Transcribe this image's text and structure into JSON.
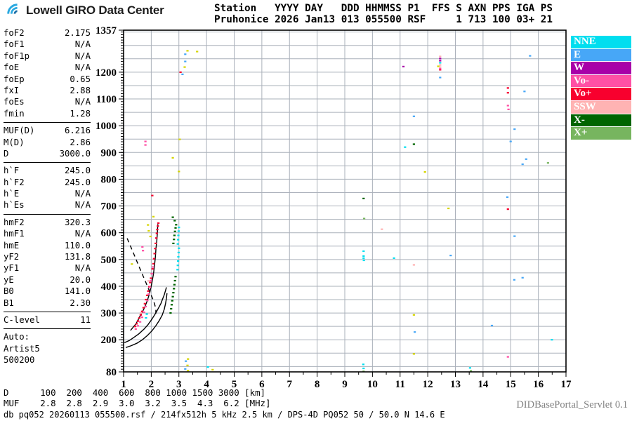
{
  "header": {
    "logo_text": "Lowell GIRO Data Center",
    "station_line1": "Station   YYYY DAY   DDD HHMMSS P1  FFS S AXN PPS IGA PS",
    "station_line2": "Pruhonice 2026 Jan13 013 055500 RSF     1 713 100 03+ 21"
  },
  "params": {
    "groups": [
      {
        "rows": [
          [
            "foF2",
            "2.175"
          ],
          [
            "foF1",
            "N/A"
          ],
          [
            "foF1p",
            "N/A"
          ],
          [
            "foE",
            "N/A"
          ],
          [
            "foEp",
            "0.65"
          ],
          [
            "fxI",
            "2.88"
          ],
          [
            "foEs",
            "N/A"
          ],
          [
            "fmin",
            "1.28"
          ]
        ]
      },
      {
        "rows": [
          [
            "MUF(D)",
            "6.216"
          ],
          [
            "M(D)",
            "2.86"
          ],
          [
            "D",
            "3000.0"
          ]
        ]
      },
      {
        "rows": [
          [
            "h`F",
            "245.0"
          ],
          [
            "h`F2",
            "245.0"
          ],
          [
            "h`E",
            "N/A"
          ],
          [
            "h`Es",
            "N/A"
          ]
        ]
      },
      {
        "rows": [
          [
            "hmF2",
            "320.3"
          ],
          [
            "hmF1",
            "N/A"
          ],
          [
            "hmE",
            "110.0"
          ],
          [
            "yF2",
            "131.8"
          ],
          [
            "yF1",
            "N/A"
          ],
          [
            "yE",
            "20.0"
          ],
          [
            "B0",
            "141.0"
          ],
          [
            "B1",
            "2.30"
          ]
        ]
      },
      {
        "rows": [
          [
            "C-level",
            "11"
          ]
        ]
      }
    ],
    "auto_title": "Auto:",
    "auto_lines": [
      "Artist5",
      "500200"
    ]
  },
  "legend": {
    "items": [
      {
        "label": "NNE",
        "color": "#00DEEF"
      },
      {
        "label": "E",
        "color": "#47A7F7"
      },
      {
        "label": "W",
        "color": "#A800A8"
      },
      {
        "label": "Vo-",
        "color": "#FF50A5"
      },
      {
        "label": "Vo+",
        "color": "#F8002E"
      },
      {
        "label": "SSW",
        "color": "#FFB3B3"
      },
      {
        "label": "X-",
        "color": "#006400"
      },
      {
        "label": "X+",
        "color": "#77B55F"
      }
    ]
  },
  "chart_data": {
    "type": "scatter",
    "title": "Pruhonice ionogram 2026 Jan13 013 055500",
    "xlabel": "[MHz]",
    "ylabel": "[km]",
    "xlim": [
      1,
      17
    ],
    "ylim": [
      80,
      1357
    ],
    "x_ticks": [
      1,
      2,
      3,
      4,
      5,
      6,
      7,
      8,
      9,
      10,
      11,
      12,
      13,
      14,
      15,
      16,
      17
    ],
    "y_ticks": [
      1357,
      1200,
      1100,
      1000,
      900,
      800,
      700,
      600,
      500,
      400,
      300,
      200,
      80
    ],
    "grid": true,
    "legend_position": "right",
    "series": [
      {
        "name": "Vo+",
        "color": "#F8002E",
        "points": [
          [
            1.42,
            250
          ],
          [
            1.47,
            260
          ],
          [
            1.52,
            270
          ],
          [
            1.57,
            281
          ],
          [
            1.62,
            293
          ],
          [
            1.67,
            306
          ],
          [
            1.72,
            320
          ],
          [
            1.77,
            335
          ],
          [
            1.81,
            350
          ],
          [
            1.85,
            366
          ],
          [
            1.89,
            382
          ],
          [
            1.93,
            398
          ],
          [
            1.96,
            414
          ],
          [
            1.99,
            430
          ],
          [
            2.02,
            447
          ],
          [
            2.05,
            465
          ],
          [
            2.08,
            484
          ],
          [
            2.1,
            503
          ],
          [
            2.12,
            522
          ],
          [
            2.14,
            541
          ],
          [
            2.16,
            560
          ],
          [
            2.18,
            580
          ],
          [
            2.2,
            598
          ],
          [
            2.22,
            612
          ],
          [
            2.24,
            625
          ],
          [
            2.26,
            636
          ],
          [
            2.04,
            739
          ],
          [
            3.06,
            1200
          ],
          [
            14.9,
            1141
          ],
          [
            14.9,
            1123
          ],
          [
            14.9,
            688
          ],
          [
            12.45,
            1209
          ]
        ]
      },
      {
        "name": "Vo-",
        "color": "#FF50A5",
        "points": [
          [
            1.44,
            240
          ],
          [
            1.52,
            252
          ],
          [
            1.6,
            267
          ],
          [
            1.67,
            284
          ],
          [
            1.74,
            303
          ],
          [
            1.8,
            324
          ],
          [
            1.86,
            347
          ],
          [
            1.91,
            371
          ],
          [
            1.95,
            396
          ],
          [
            1.99,
            421
          ],
          [
            2.03,
            447
          ],
          [
            2.06,
            472
          ],
          [
            1.68,
            547
          ],
          [
            1.7,
            533
          ],
          [
            1.79,
            941
          ],
          [
            1.79,
            928
          ],
          [
            14.9,
            1075
          ],
          [
            14.92,
            1061
          ],
          [
            14.9,
            136
          ],
          [
            12.45,
            1213
          ]
        ]
      },
      {
        "name": "SSW",
        "color": "#FFB3B3",
        "points": [
          [
            10.34,
            613
          ],
          [
            11.5,
            480
          ],
          [
            12.45,
            1259
          ],
          [
            12.45,
            1227
          ],
          [
            12.45,
            1219
          ],
          [
            1.63,
            300
          ],
          [
            1.9,
            420
          ]
        ]
      },
      {
        "name": "W",
        "color": "#A800A8",
        "points": [
          [
            11.12,
            1221
          ],
          [
            12.45,
            1251
          ],
          [
            12.45,
            1243
          ]
        ]
      },
      {
        "name": "E",
        "color": "#47A7F7",
        "points": [
          [
            3.23,
            1267
          ],
          [
            3.23,
            1240
          ],
          [
            3.13,
            1192
          ],
          [
            3.25,
            120
          ],
          [
            3.23,
            91
          ],
          [
            12.45,
            1180
          ],
          [
            15.7,
            1261
          ],
          [
            15.5,
            1128
          ],
          [
            11.5,
            1035
          ],
          [
            15.14,
            987
          ],
          [
            15.0,
            941
          ],
          [
            15.56,
            875
          ],
          [
            15.43,
            856
          ],
          [
            14.88,
            733
          ],
          [
            15.14,
            587
          ],
          [
            15.43,
            432
          ],
          [
            15.13,
            424
          ],
          [
            14.32,
            253
          ],
          [
            11.53,
            229
          ],
          [
            12.83,
            515
          ]
        ]
      },
      {
        "name": "NNE",
        "color": "#00DEEF",
        "points": [
          [
            2.95,
            462
          ],
          [
            2.96,
            478
          ],
          [
            2.97,
            494
          ],
          [
            2.98,
            510
          ],
          [
            2.99,
            526
          ],
          [
            3.0,
            542
          ],
          [
            2.96,
            558
          ],
          [
            2.97,
            574
          ],
          [
            2.98,
            590
          ],
          [
            2.99,
            606
          ],
          [
            3.0,
            620
          ],
          [
            1.84,
            296
          ],
          [
            1.81,
            282
          ],
          [
            9.68,
            531
          ],
          [
            9.68,
            513
          ],
          [
            9.68,
            505
          ],
          [
            9.69,
            497
          ],
          [
            10.78,
            505
          ],
          [
            11.18,
            920
          ],
          [
            16.49,
            200
          ],
          [
            9.67,
            108
          ],
          [
            9.68,
            93
          ],
          [
            13.53,
            95
          ],
          [
            4.05,
            98
          ],
          [
            12.45,
            1235
          ]
        ]
      },
      {
        "name": "X-",
        "color": "#006400",
        "points": [
          [
            2.7,
            300
          ],
          [
            2.72,
            316
          ],
          [
            2.74,
            331
          ],
          [
            2.76,
            346
          ],
          [
            2.78,
            361
          ],
          [
            2.8,
            376
          ],
          [
            2.82,
            391
          ],
          [
            2.84,
            406
          ],
          [
            2.86,
            421
          ],
          [
            2.88,
            436
          ],
          [
            2.8,
            560
          ],
          [
            2.82,
            575
          ],
          [
            2.84,
            590
          ],
          [
            2.86,
            605
          ],
          [
            2.88,
            618
          ],
          [
            2.9,
            630
          ],
          [
            2.85,
            645
          ],
          [
            2.78,
            658
          ],
          [
            11.5,
            931
          ],
          [
            9.68,
            728
          ]
        ]
      },
      {
        "name": "X+",
        "color": "#77B55F",
        "points": [
          [
            9.7,
            653
          ],
          [
            16.35,
            861
          ],
          [
            9.68,
            82
          ],
          [
            13.56,
            84
          ]
        ]
      },
      {
        "name": "other",
        "color": "#D5D500",
        "points": [
          [
            1.88,
            629
          ],
          [
            1.91,
            607
          ],
          [
            1.3,
            483
          ],
          [
            1.97,
            586
          ],
          [
            3.03,
            949
          ],
          [
            2.78,
            880
          ],
          [
            3.0,
            829
          ],
          [
            3.21,
            1219
          ],
          [
            3.31,
            1280
          ],
          [
            3.66,
            1277
          ],
          [
            11.9,
            827
          ],
          [
            11.5,
            293
          ],
          [
            11.5,
            147
          ],
          [
            12.75,
            691
          ],
          [
            12.38,
            1222
          ],
          [
            3.33,
            128
          ],
          [
            3.31,
            104
          ],
          [
            3.33,
            85
          ],
          [
            4.22,
            88
          ],
          [
            2.08,
            660
          ]
        ]
      }
    ],
    "profile_lines": [
      {
        "name": "valley-extrapolation",
        "style": "dashed",
        "points": [
          [
            1.13,
            579
          ],
          [
            1.36,
            523
          ],
          [
            1.61,
            461
          ],
          [
            1.81,
            413
          ],
          [
            1.96,
            376
          ],
          [
            2.09,
            344
          ],
          [
            2.17,
            315
          ],
          [
            2.16,
            294
          ]
        ]
      },
      {
        "name": "trace-fit",
        "style": "solid",
        "points": [
          [
            1.25,
            235
          ],
          [
            1.45,
            260
          ],
          [
            1.61,
            291
          ],
          [
            1.75,
            318
          ],
          [
            1.86,
            347
          ],
          [
            1.95,
            378
          ],
          [
            2.02,
            411
          ],
          [
            2.08,
            445
          ],
          [
            2.12,
            480
          ],
          [
            2.15,
            510
          ],
          [
            2.17,
            541
          ],
          [
            2.2,
            570
          ],
          [
            2.22,
            595
          ],
          [
            2.23,
            615
          ],
          [
            2.24,
            632
          ]
        ]
      },
      {
        "name": "profile-upper",
        "style": "solid",
        "points": [
          [
            1.03,
            189
          ],
          [
            1.2,
            197
          ],
          [
            1.36,
            208
          ],
          [
            1.55,
            222
          ],
          [
            1.74,
            240
          ],
          [
            1.87,
            255
          ],
          [
            1.99,
            272
          ],
          [
            2.08,
            286
          ],
          [
            2.17,
            301
          ],
          [
            2.26,
            318
          ],
          [
            2.35,
            336
          ],
          [
            2.41,
            352
          ],
          [
            2.47,
            368
          ],
          [
            2.51,
            382
          ],
          [
            2.55,
            396
          ]
        ]
      },
      {
        "name": "profile-lower",
        "style": "solid",
        "points": [
          [
            1.08,
            171
          ],
          [
            1.28,
            178
          ],
          [
            1.48,
            187
          ],
          [
            1.68,
            200
          ],
          [
            1.86,
            216
          ],
          [
            2.02,
            233
          ],
          [
            2.17,
            253
          ],
          [
            2.29,
            272
          ],
          [
            2.4,
            293
          ],
          [
            2.47,
            314
          ],
          [
            2.52,
            336
          ],
          [
            2.55,
            355
          ],
          [
            2.57,
            374
          ]
        ]
      }
    ]
  },
  "footer": {
    "d_row": "D      100  200  400  600  800 1000 1500 3000 [km]",
    "muf_row": "MUF    2.8  2.8  2.9  3.0  3.2  3.5  4.3  6.2 [MHz]",
    "info": "db pq052 20260113 055500.rsf / 214fx512h 5 kHz 2.5 km / DPS-4D PQ052 50 / 50.0 N 14.6 E",
    "servlet": "DIDBasePortal_Servlet 0.1"
  }
}
